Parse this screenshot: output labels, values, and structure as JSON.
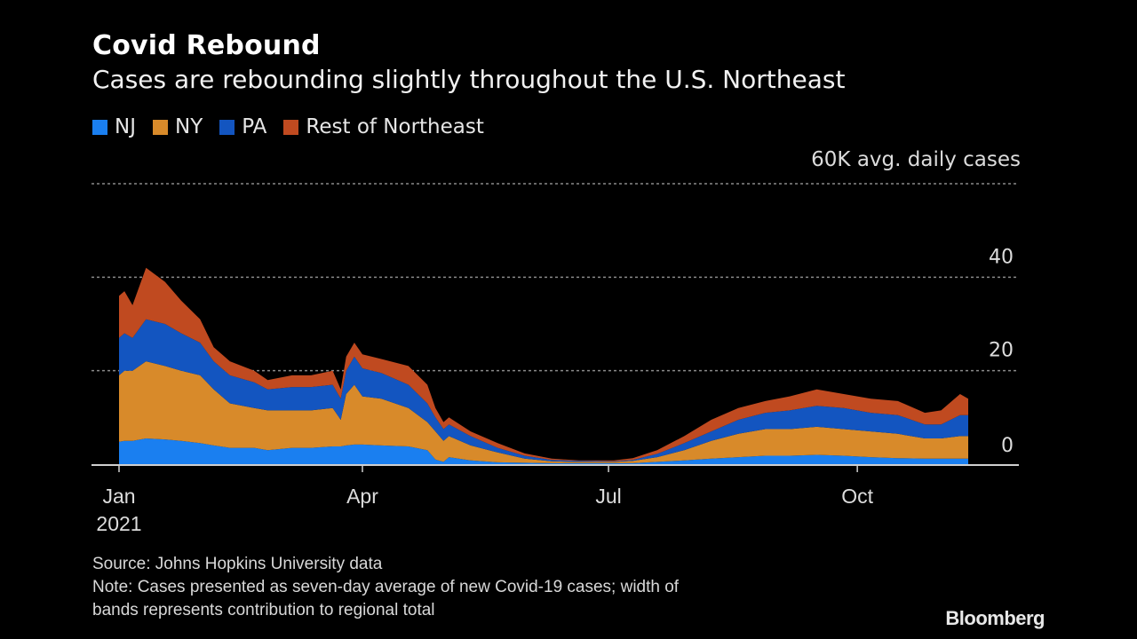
{
  "chart_data": {
    "type": "area",
    "stacked": true,
    "title": "Covid Rebound",
    "subtitle": "Cases are rebounding slightly throughout the U.S. Northeast",
    "ylabel": "60K avg. daily cases",
    "xlabel": "",
    "ylim": [
      0,
      60
    ],
    "yticks": [
      {
        "value": 60,
        "label": "60K avg. daily cases"
      },
      {
        "value": 40,
        "label": "40"
      },
      {
        "value": 20,
        "label": "20"
      },
      {
        "value": 0,
        "label": "0"
      }
    ],
    "xlim_days": [
      -10,
      334
    ],
    "xticks": [
      {
        "day": 0,
        "label": "Jan",
        "sublabel": "2021"
      },
      {
        "day": 90,
        "label": "Apr",
        "sublabel": ""
      },
      {
        "day": 181,
        "label": "Jul",
        "sublabel": ""
      },
      {
        "day": 273,
        "label": "Oct",
        "sublabel": ""
      }
    ],
    "grid": true,
    "legend_position": "top-left",
    "x_days": [
      0,
      2,
      5,
      10,
      17,
      23,
      30,
      35,
      41,
      50,
      55,
      64,
      71,
      79,
      82,
      84,
      87,
      90,
      97,
      107,
      114,
      117,
      120,
      122,
      130,
      140,
      150,
      160,
      170,
      183,
      190,
      199,
      209,
      219,
      229,
      239,
      248,
      258,
      268,
      278,
      288,
      298,
      304,
      311,
      314
    ],
    "series": [
      {
        "name": "NJ",
        "color": "#1a7ff0",
        "values": [
          4.8,
          5,
          5,
          5.5,
          5.3,
          5,
          4.5,
          4,
          3.5,
          3.5,
          3,
          3.5,
          3.5,
          3.8,
          3.8,
          4,
          4.2,
          4.2,
          4,
          3.8,
          3,
          1,
          0.5,
          1.5,
          0.8,
          0.4,
          0.3,
          0.2,
          0.2,
          0.2,
          0.2,
          0.5,
          0.8,
          1.2,
          1.5,
          1.8,
          1.8,
          2,
          1.8,
          1.5,
          1.3,
          1.2,
          1.2,
          1.2,
          1.2
        ]
      },
      {
        "name": "NY",
        "color": "#d88a2a",
        "values": [
          14.2,
          15,
          15,
          16.5,
          15.7,
          15,
          14.5,
          12,
          9.5,
          8.5,
          8.5,
          8,
          8,
          8.2,
          5.7,
          11,
          12.8,
          10.3,
          10,
          8.2,
          6,
          6,
          4.5,
          4.5,
          3.2,
          2.1,
          0.9,
          0.4,
          0.3,
          0.3,
          0.5,
          1,
          2.2,
          3.8,
          5,
          5.7,
          5.7,
          6,
          5.7,
          5.5,
          5.2,
          4.3,
          4.3,
          4.8,
          4.8
        ]
      },
      {
        "name": "PA",
        "color": "#1355c0",
        "values": [
          8,
          8,
          7,
          9,
          9,
          8,
          7,
          6,
          6,
          5.5,
          4.5,
          5,
          5,
          5,
          4.5,
          5,
          6,
          6,
          5.5,
          5,
          4,
          3,
          2.5,
          2.5,
          2,
          1,
          0.6,
          0.3,
          0.2,
          0.1,
          0.2,
          0.7,
          1.5,
          2,
          3,
          3.5,
          4,
          4.5,
          4.5,
          4,
          4,
          3,
          3,
          4.5,
          4.5
        ]
      },
      {
        "name": "Rest of Northeast",
        "color": "#c04a20",
        "values": [
          9,
          9,
          7,
          11,
          9,
          7,
          5,
          3,
          3,
          2.5,
          2,
          2.5,
          2.5,
          3,
          2,
          3,
          3,
          3,
          3,
          4,
          4,
          2,
          1.5,
          1.5,
          1,
          1,
          0.5,
          0.3,
          0.1,
          0.2,
          0.4,
          0.8,
          1.5,
          2.5,
          2.5,
          2.5,
          3,
          3.5,
          3,
          3,
          3,
          2.5,
          3,
          4.5,
          3.5
        ]
      }
    ]
  },
  "legend": [
    {
      "label": "NJ",
      "color": "#1a7ff0"
    },
    {
      "label": "NY",
      "color": "#d88a2a"
    },
    {
      "label": "PA",
      "color": "#1355c0"
    },
    {
      "label": "Rest of Northeast",
      "color": "#c04a20"
    }
  ],
  "footer": {
    "source": "Source: Johns Hopkins University data",
    "note_line1": "Note: Cases presented as seven-day average of new Covid-19 cases; width of",
    "note_line2": "bands represents contribution to regional total",
    "brand": "Bloomberg"
  }
}
